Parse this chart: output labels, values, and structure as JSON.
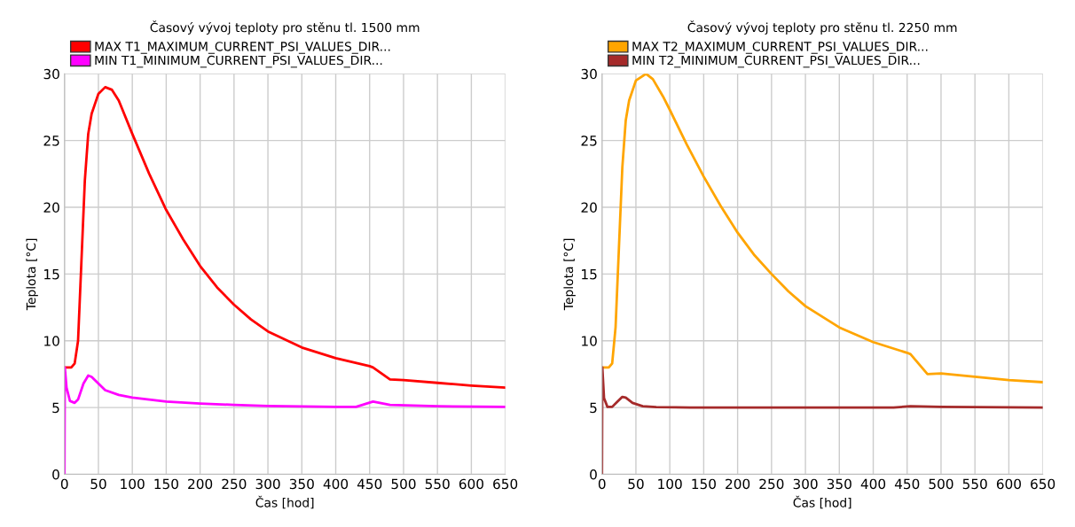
{
  "chart_data": [
    {
      "type": "line",
      "title": "Časový vývoj teploty pro stěnu tl. 1500 mm",
      "xlabel": "Čas [hod]",
      "ylabel": "Teplota [°C]",
      "xlim": [
        0,
        650
      ],
      "ylim": [
        0,
        30
      ],
      "xticks": [
        0,
        50,
        100,
        150,
        200,
        250,
        300,
        350,
        400,
        450,
        500,
        550,
        600,
        650
      ],
      "yticks": [
        0,
        5,
        10,
        15,
        20,
        25,
        30
      ],
      "grid": true,
      "legend": "top",
      "marker": "none",
      "series": [
        {
          "name": "MAX T1_MAXIMUM_CURRENT_PSI_VALUES_DIR...",
          "color": "#ff0000",
          "x": [
            0,
            10,
            15,
            20,
            25,
            30,
            35,
            40,
            50,
            60,
            70,
            80,
            100,
            125,
            150,
            175,
            200,
            225,
            250,
            275,
            300,
            350,
            400,
            450,
            455,
            480,
            500,
            550,
            600,
            650
          ],
          "values": [
            8,
            8,
            8.3,
            10,
            16,
            22,
            25.5,
            27,
            28.5,
            29,
            28.8,
            28,
            25.5,
            22.5,
            19.8,
            17.6,
            15.6,
            14,
            12.7,
            11.6,
            10.7,
            9.5,
            8.7,
            8.1,
            8.0,
            7.1,
            7.05,
            6.85,
            6.65,
            6.5
          ]
        },
        {
          "name": "MIN T1_MINIMUM_CURRENT_PSI_VALUES_DIR...",
          "color": "#ff00ff",
          "x": [
            0,
            0.5,
            3,
            8,
            15,
            20,
            28,
            35,
            40,
            50,
            60,
            80,
            100,
            150,
            200,
            250,
            300,
            400,
            430,
            455,
            480,
            550,
            650
          ],
          "values": [
            0,
            8,
            6.5,
            5.5,
            5.35,
            5.6,
            6.8,
            7.4,
            7.3,
            6.8,
            6.3,
            5.95,
            5.75,
            5.45,
            5.3,
            5.2,
            5.12,
            5.05,
            5.05,
            5.45,
            5.2,
            5.1,
            5.05
          ]
        }
      ]
    },
    {
      "type": "line",
      "title": "Časový vývoj teploty pro stěnu tl. 2250 mm",
      "xlabel": "Čas [hod]",
      "ylabel": "Teplota [°C]",
      "xlim": [
        0,
        650
      ],
      "ylim": [
        0,
        30
      ],
      "xticks": [
        0,
        50,
        100,
        150,
        200,
        250,
        300,
        350,
        400,
        450,
        500,
        550,
        600,
        650
      ],
      "yticks": [
        0,
        5,
        10,
        15,
        20,
        25,
        30
      ],
      "grid": true,
      "legend": "top",
      "marker": "none",
      "series": [
        {
          "name": "MAX T2_MAXIMUM_CURRENT_PSI_VALUES_DIR...",
          "color": "#ffa500",
          "x": [
            0,
            10,
            15,
            20,
            25,
            30,
            35,
            40,
            50,
            65,
            75,
            90,
            100,
            125,
            150,
            175,
            200,
            225,
            250,
            275,
            300,
            350,
            400,
            450,
            455,
            480,
            500,
            550,
            600,
            650
          ],
          "values": [
            8,
            8,
            8.3,
            11,
            17,
            23,
            26.5,
            28,
            29.5,
            30,
            29.6,
            28.3,
            27.3,
            24.7,
            22.3,
            20.1,
            18.1,
            16.4,
            15,
            13.7,
            12.6,
            11,
            9.9,
            9.1,
            9.0,
            7.5,
            7.55,
            7.3,
            7.05,
            6.9
          ]
        },
        {
          "name": "MIN T2_MINIMUM_CURRENT_PSI_VALUES_DIR...",
          "color": "#a52a2a",
          "x": [
            0,
            0.5,
            3,
            8,
            15,
            22,
            30,
            35,
            45,
            60,
            80,
            130,
            430,
            455,
            500,
            650
          ],
          "values": [
            0,
            8,
            5.7,
            5.05,
            5.05,
            5.4,
            5.8,
            5.75,
            5.35,
            5.1,
            5.03,
            5,
            5,
            5.1,
            5.05,
            5
          ]
        }
      ]
    }
  ]
}
